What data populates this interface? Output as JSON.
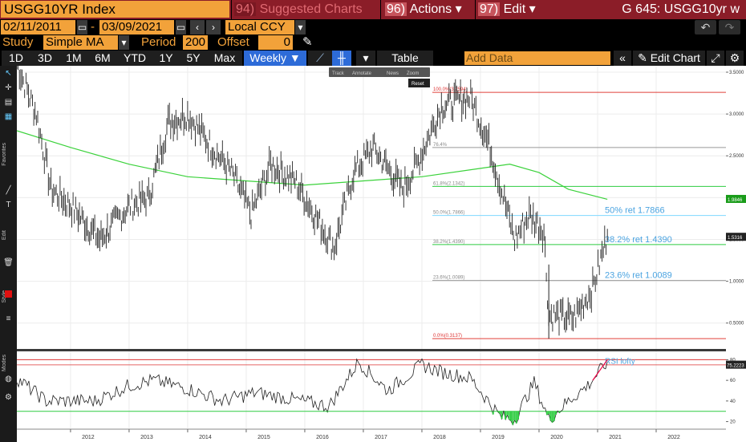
{
  "topbar": {
    "ticker": "USGG10YR Index",
    "suggested_num": "94)",
    "suggested_label": "Suggested Charts",
    "actions_num": "96)",
    "actions_label": "Actions ▾",
    "edit_num": "97)",
    "edit_label": "Edit ▾",
    "title": "G 645: USGG10yr w"
  },
  "range": {
    "start": "02/11/2011",
    "dash": "-",
    "end": "03/09/2021",
    "currency": "Local CCY"
  },
  "study": {
    "study_label": "Study",
    "study_value": "Simple MA",
    "period_label": "Period",
    "period_value": "200",
    "offset_label": "Offset",
    "offset_value": "0"
  },
  "toolbar": {
    "periods": [
      "1D",
      "3D",
      "1M",
      "6M",
      "YTD",
      "1Y",
      "5Y",
      "Max"
    ],
    "frequency": "Weekly ▼",
    "table": "Table",
    "add_data_placeholder": "Add Data",
    "edit_chart": "Edit Chart"
  },
  "chart_tools": {
    "track": "Track",
    "annotate": "Annotate",
    "news": "News",
    "zoom": "Zoom",
    "reset": "Reset"
  },
  "left_toolbar": {
    "favorites": "Favorites",
    "edit": "Edit",
    "style": "Style",
    "modes": "Modes"
  },
  "colors": {
    "accent": "#f2a23a",
    "brand_red": "#8b1d28",
    "ma_line": "#3bd23b",
    "fib_red": "#e0403a",
    "fib_blue": "#7fd8ff",
    "fib_green": "#2ecc40",
    "active_tab": "#2d6bd8"
  },
  "chart_data": [
    {
      "type": "line",
      "series": [
        {
          "name": "",
          "x": [
            "2011-02",
            "2011-06",
            "2011-09",
            "2012-01",
            "2012-07",
            "2013-01",
            "2013-05",
            "2013-09",
            "2014-01",
            "2014-06",
            "2014-10",
            "2015-02",
            "2015-06",
            "2015-11",
            "2016-03",
            "2016-07",
            "2016-11",
            "2017-03",
            "2017-09",
            "2017-12",
            "2018-05",
            "2018-11",
            "2019-03",
            "2019-08",
            "2019-11",
            "2020-02",
            "2020-03",
            "2020-08",
            "2020-12",
            "2021-03"
          ],
          "values": [
            3.6,
            3.0,
            2.1,
            1.9,
            1.5,
            1.9,
            2.0,
            2.9,
            3.0,
            2.6,
            2.3,
            1.8,
            2.4,
            2.2,
            1.8,
            1.4,
            2.3,
            2.6,
            2.1,
            2.4,
            3.1,
            3.2,
            2.6,
            1.5,
            1.8,
            1.6,
            0.6,
            0.55,
            0.92,
            1.55
          ]
        },
        {
          "name": "",
          "x": [
            "2011-02",
            "2012-01",
            "2013-01",
            "2014-01",
            "2015-01",
            "2016-01",
            "2017-01",
            "2018-01",
            "2019-01",
            "2019-07",
            "2020-01",
            "2020-07",
            "2021-03"
          ],
          "values": [
            2.8,
            2.6,
            2.4,
            2.25,
            2.2,
            2.15,
            2.2,
            2.25,
            2.35,
            2.4,
            2.3,
            2.1,
            1.98
          ]
        }
      ],
      "fib_levels": [
        {
          "label": "100.0%(3.2594)",
          "value": 3.2594
        },
        {
          "label": "76.4%",
          "value": 2.6
        },
        {
          "label": "61.8%(2.1342)",
          "value": 2.1342
        },
        {
          "label": "50.0%(1.7866)",
          "value": 1.7866
        },
        {
          "label": "38.2%(1.4390)",
          "value": 1.439
        },
        {
          "label": "23.6%(1.0089)",
          "value": 1.0089
        },
        {
          "label": "0.0%(0.3137)",
          "value": 0.3137
        }
      ],
      "annotations": [
        "50% ret 1.7866",
        "38.2% ret 1.4390",
        "23.6% ret 1.0089"
      ],
      "y_ticks": [
        "3.5000",
        "3.0000",
        "2.5000",
        "2.0000",
        "1.5000",
        "1.0000",
        "0.5000"
      ],
      "last_value": "1.5316",
      "ma_value": "1.9846",
      "ylim": [
        0.2,
        3.5
      ],
      "grid": true
    },
    {
      "type": "line",
      "series": [
        {
          "name": "",
          "x": [
            "2011-02",
            "2011-08",
            "2012-06",
            "2013-01",
            "2013-06",
            "2014-01",
            "2014-08",
            "2015-03",
            "2015-10",
            "2016-06",
            "2016-12",
            "2017-06",
            "2018-01",
            "2018-05",
            "2018-11",
            "2019-05",
            "2019-08",
            "2019-12",
            "2020-03",
            "2020-07",
            "2020-11",
            "2021-03"
          ],
          "values": [
            62,
            40,
            40,
            55,
            60,
            52,
            40,
            48,
            42,
            35,
            78,
            50,
            75,
            68,
            62,
            25,
            22,
            58,
            22,
            40,
            55,
            78
          ]
        }
      ],
      "annotations": [
        "RSI lofty"
      ],
      "y_ticks": [
        "80",
        "60",
        "40",
        "20"
      ],
      "last_value": "75.2223",
      "ylim": [
        15,
        85
      ]
    }
  ],
  "x_axis": [
    "2012",
    "2013",
    "2014",
    "2015",
    "2016",
    "2017",
    "2018",
    "2019",
    "2020",
    "2021",
    "2022"
  ]
}
